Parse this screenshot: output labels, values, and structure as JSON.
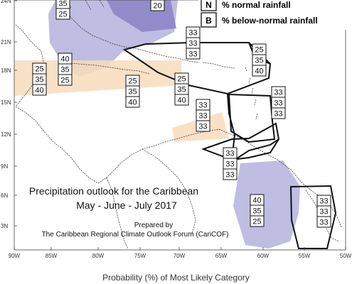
{
  "title_line1": "Precipitation outlook for the Caribbean",
  "title_line2": "May - June - July 2017",
  "prepared_by": "Prepared by",
  "prepared_org": "The Caribbean Regional Climate Outlook Forum (CariCOF)",
  "caption": "Probability (%) of Most Likely Category",
  "legend": [
    {
      "letter": "N",
      "text": "% normal rainfall"
    },
    {
      "letter": "B",
      "text": "% below-normal rainfall"
    }
  ],
  "lat_labels": [
    "24N",
    "21N",
    "18N",
    "15N",
    "12N",
    "9N",
    "6N",
    "3N"
  ],
  "lon_labels": [
    "90W",
    "85W",
    "80W",
    "75W",
    "70W",
    "65W",
    "60W",
    "55W",
    "50W"
  ],
  "colors": {
    "below_normal_zone": "#b4b2dc",
    "above_normal_zone": "#f8dcbc",
    "deep_zone": "#8c86c6",
    "coast": "#333333",
    "zone_outline": "#111111"
  },
  "probability_boxes": [
    {
      "values": [
        "35",
        "25"
      ]
    },
    {
      "values": [
        "20"
      ]
    },
    {
      "values": [
        "33",
        "33",
        "33"
      ]
    },
    {
      "values": [
        "40",
        "35",
        "25"
      ]
    },
    {
      "values": [
        "25",
        "35",
        "40"
      ]
    },
    {
      "values": [
        "25",
        "35",
        "40"
      ]
    },
    {
      "values": [
        "25",
        "35",
        "40"
      ]
    },
    {
      "values": [
        "33",
        "33",
        "33"
      ]
    },
    {
      "values": [
        "25",
        "35",
        "40"
      ]
    },
    {
      "values": [
        "33",
        "33",
        "33"
      ]
    },
    {
      "values": [
        "33",
        "33",
        "33"
      ]
    },
    {
      "values": [
        "40",
        "35",
        "25"
      ]
    },
    {
      "values": [
        "33",
        "33",
        "33"
      ]
    }
  ]
}
